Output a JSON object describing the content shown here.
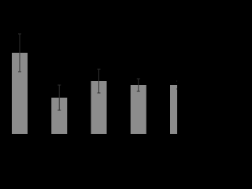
{
  "chart_data": {
    "type": "bar",
    "categories": [
      null,
      null,
      null,
      null,
      null
    ],
    "values": [
      103,
      46,
      67,
      62,
      62
    ],
    "errors": [
      24,
      16,
      15,
      8,
      5
    ],
    "color": "#8c8c8c",
    "error_color": "#303030",
    "background": "#000000",
    "ylim": [
      0,
      170
    ]
  }
}
